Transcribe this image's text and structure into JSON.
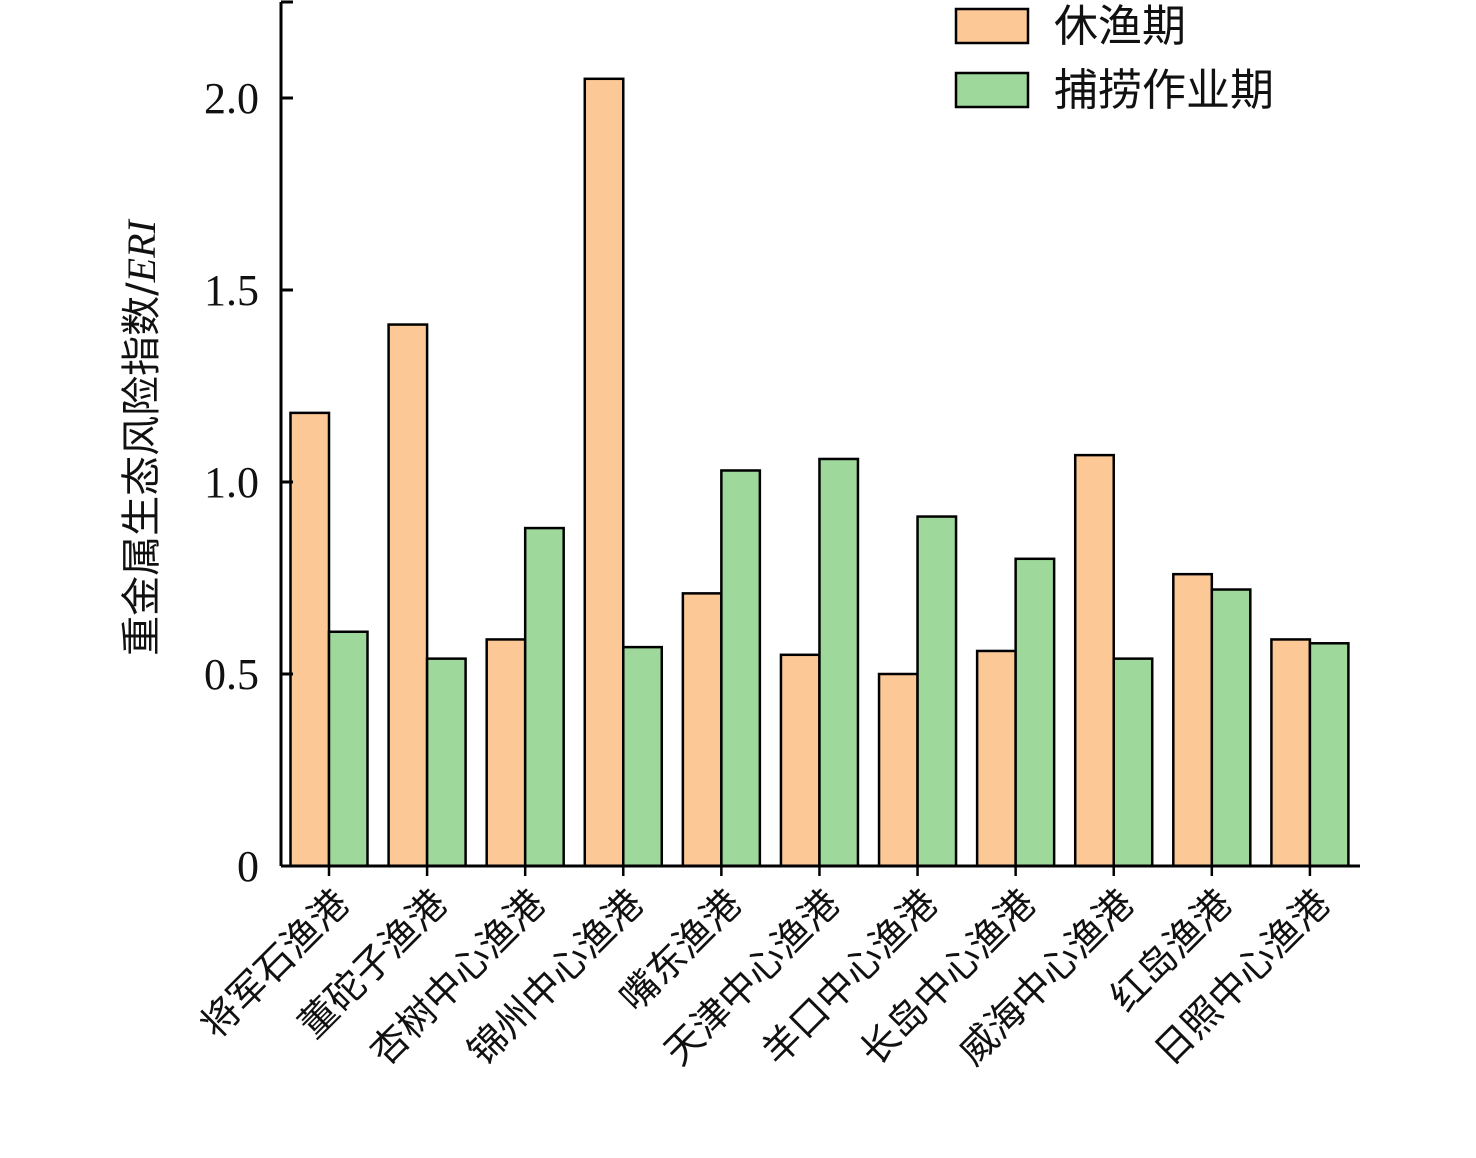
{
  "chart_data": {
    "type": "bar",
    "title": "",
    "xlabel": "",
    "ylabel_main": "重金属生态风险指数/",
    "ylabel_em": "ERI",
    "ylim": [
      0,
      2.25
    ],
    "yticks": [
      0,
      0.5,
      1.0,
      1.5,
      2.0
    ],
    "ytick_labels": [
      "0",
      "0.5",
      "1.0",
      "1.5",
      "2.0"
    ],
    "grid": false,
    "legend_position": "top-right",
    "categories": [
      "将军石渔港",
      "董砣子渔港",
      "杏树中心渔港",
      "锦州中心渔港",
      "嘴东渔港",
      "天津中心渔港",
      "羊口中心渔港",
      "长岛中心渔港",
      "威海中心渔港",
      "红岛渔港",
      "日照中心渔港"
    ],
    "series": [
      {
        "name": "休渔期",
        "color": "#FCC896",
        "values": [
          1.18,
          1.41,
          0.59,
          2.05,
          0.71,
          0.55,
          0.5,
          0.56,
          1.07,
          0.76,
          0.59
        ]
      },
      {
        "name": "捕捞作业期",
        "color": "#9ED89B",
        "values": [
          0.61,
          0.54,
          0.88,
          0.57,
          1.03,
          1.06,
          0.91,
          0.8,
          0.54,
          0.72,
          0.58
        ]
      }
    ]
  }
}
